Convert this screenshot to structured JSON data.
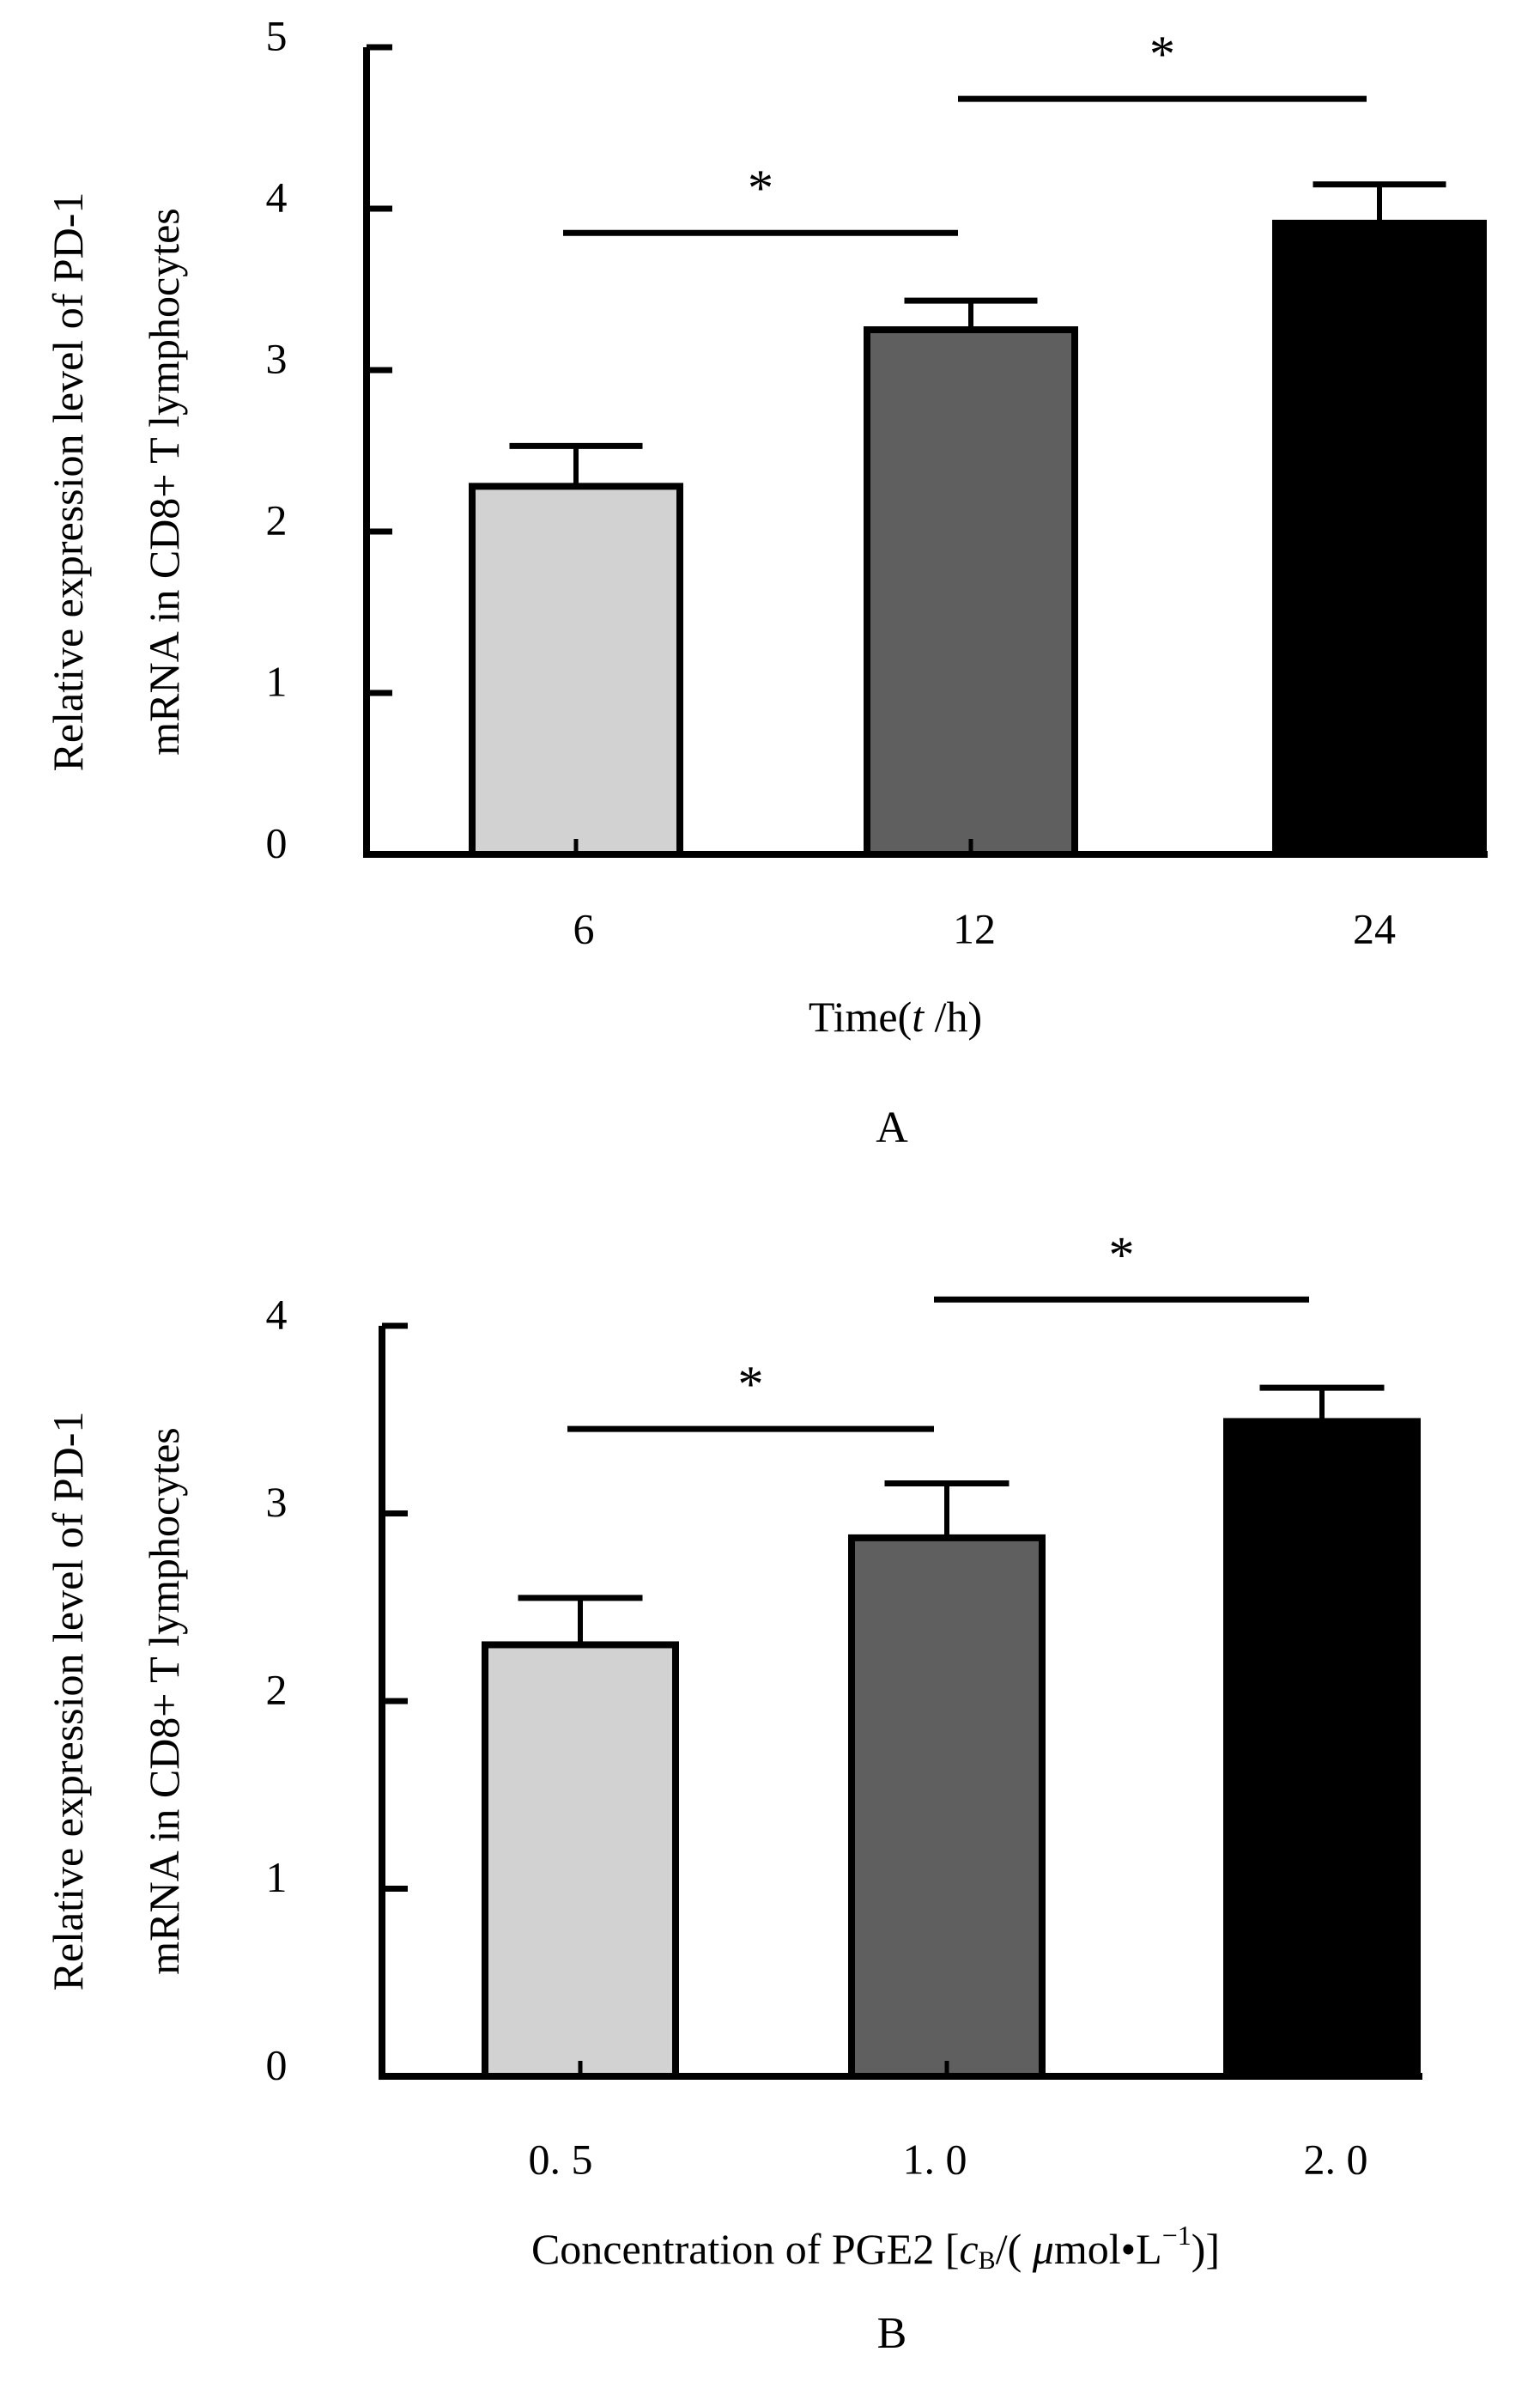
{
  "colors": {
    "bar1": "#d2d2d2",
    "bar2": "#5f5f5f",
    "bar3": "#000000",
    "axis": "#000000"
  },
  "chart_data": [
    {
      "type": "bar",
      "panel": "A",
      "title": "",
      "xlabel_parts": [
        "Time(",
        "t",
        " /h)"
      ],
      "ylabel_lines": [
        "Relative expression level of PD-1",
        "mRNA in CD8+ T lymphocytes"
      ],
      "categories": [
        "6",
        "12",
        "24"
      ],
      "values": [
        2.28,
        3.25,
        3.91
      ],
      "errors": [
        0.25,
        0.18,
        0.24
      ],
      "ylim": [
        0,
        5
      ],
      "yticks": [
        "0",
        "1",
        "2",
        "3",
        "4",
        "5"
      ],
      "grid": false,
      "significance": [
        {
          "from": 0,
          "to": 1,
          "label": "*",
          "level": 3.85
        },
        {
          "from": 1,
          "to": 2,
          "label": "*",
          "level": 4.68
        }
      ]
    },
    {
      "type": "bar",
      "panel": "B",
      "title": "",
      "xlabel_parts": [
        "Concentration of PGE2 [",
        "c",
        "B",
        "/( ",
        "μ",
        "mol•L",
        "−1",
        ")]"
      ],
      "ylabel_lines": [
        "Relative expression level of PD-1",
        "mRNA in CD8+ T lymphocytes"
      ],
      "categories": [
        "0. 5",
        "1. 0",
        "2. 0"
      ],
      "values": [
        2.3,
        2.87,
        3.49
      ],
      "errors": [
        0.25,
        0.29,
        0.18
      ],
      "ylim": [
        0,
        4
      ],
      "yticks": [
        "0",
        "1",
        "2",
        "3",
        "4"
      ],
      "grid": false,
      "significance": [
        {
          "from": 0,
          "to": 1,
          "label": "*",
          "level": 3.45
        },
        {
          "from": 1,
          "to": 2,
          "label": "*",
          "level": 4.14
        }
      ]
    }
  ]
}
